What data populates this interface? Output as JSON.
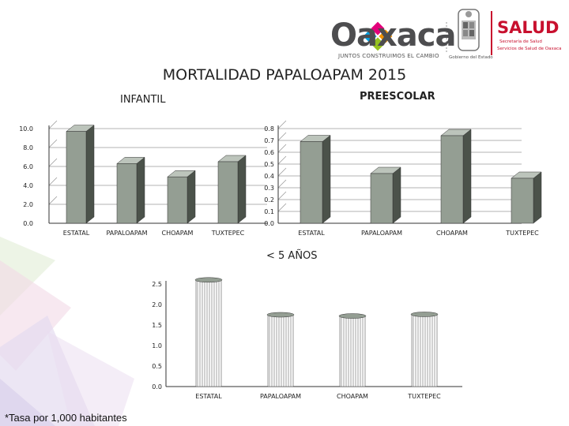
{
  "header": {
    "brand_name": "Oaxaca",
    "brand_tagline": "JUNTOS CONSTRUIMOS EL CAMBIO",
    "gov_label": "Gobierno del Estado",
    "salud_name": "SALUD",
    "salud_sub1": "Secretaría de Salud",
    "salud_sub2": "Servicios de Salud de Oaxaca"
  },
  "page_title": "MORTALIDAD PAPALOAPAM 2015",
  "footnote": "*Tasa por 1,000 habitantes",
  "colors": {
    "bar_face": "#949e93",
    "bar_side": "#4b524a",
    "bar_top": "#bcc4bb",
    "axis": "#333333",
    "grid": "#9a9a9a"
  },
  "chart_data": [
    {
      "type": "bar",
      "title": "INFANTIL",
      "categories": [
        "ESTATAL",
        "PAPALOAPAM",
        "CHOAPAM",
        "TUXTEPEC"
      ],
      "values": [
        9.7,
        6.3,
        4.9,
        6.5
      ],
      "ylim": [
        0,
        10
      ],
      "yticks": [
        "0.0",
        "2.0",
        "4.0",
        "6.0",
        "8.0",
        "10.0"
      ],
      "grid": true
    },
    {
      "type": "bar",
      "title": "PREESCOLAR",
      "categories": [
        "ESTATAL",
        "PAPALOAPAM",
        "CHOAPAM",
        "TUXTEPEC"
      ],
      "values": [
        0.69,
        0.42,
        0.74,
        0.38
      ],
      "ylim": [
        0,
        0.8
      ],
      "yticks": [
        "0.0",
        "0.1",
        "0.2",
        "0.3",
        "0.4",
        "0.5",
        "0.6",
        "0.7",
        "0.8"
      ],
      "grid": true
    },
    {
      "type": "bar",
      "title": "< 5 AÑOS",
      "categories": [
        "ESTATAL",
        "PAPALOAPAM",
        "CHOAPAM",
        "TUXTEPEC"
      ],
      "values": [
        2.6,
        1.75,
        1.72,
        1.76
      ],
      "ylim": [
        0,
        2.5
      ],
      "yticks": [
        "0.0",
        "0.5",
        "1.0",
        "1.5",
        "2.0",
        "2.5"
      ],
      "grid": false
    }
  ]
}
